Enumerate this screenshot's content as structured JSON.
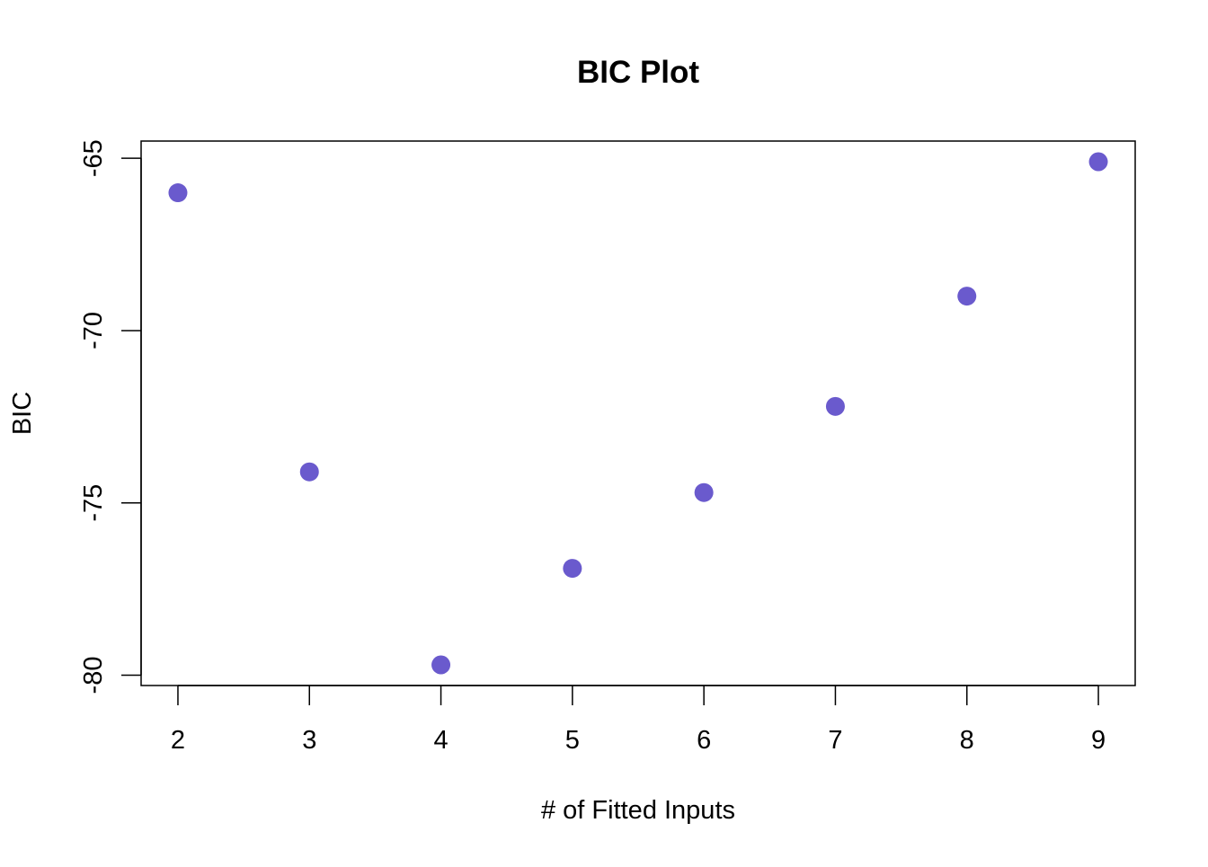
{
  "chart_data": {
    "type": "scatter",
    "title": "BIC Plot",
    "xlabel": "# of Fitted Inputs",
    "ylabel": "BIC",
    "x": [
      2,
      3,
      4,
      5,
      6,
      7,
      8,
      9
    ],
    "y": [
      -66.0,
      -74.1,
      -79.7,
      -76.9,
      -74.7,
      -72.2,
      -69.0,
      -65.1
    ],
    "xlim": [
      1.72,
      9.28
    ],
    "ylim": [
      -80.3,
      -64.5
    ],
    "xticks": [
      2,
      3,
      4,
      5,
      6,
      7,
      8,
      9
    ],
    "xtick_labels": [
      "2",
      "3",
      "4",
      "5",
      "6",
      "7",
      "8",
      "9"
    ],
    "yticks": [
      -80,
      -75,
      -70,
      -65
    ],
    "ytick_labels": [
      "-80",
      "-75",
      "-70",
      "-65"
    ],
    "point_color": "#6a5acd",
    "grid": false,
    "legend": false
  }
}
